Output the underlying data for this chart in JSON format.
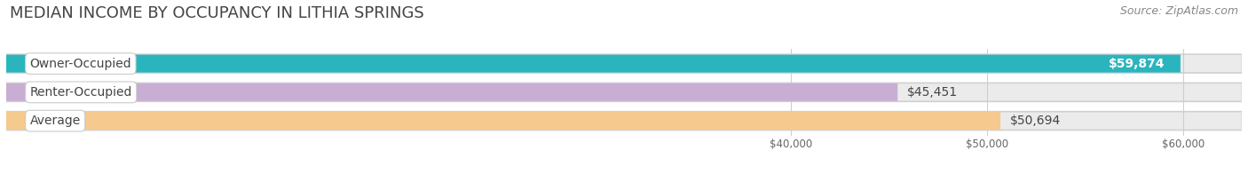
{
  "title": "MEDIAN INCOME BY OCCUPANCY IN LITHIA SPRINGS",
  "source": "Source: ZipAtlas.com",
  "categories": [
    "Owner-Occupied",
    "Renter-Occupied",
    "Average"
  ],
  "values": [
    59874,
    45451,
    50694
  ],
  "bar_colors": [
    "#2ab5be",
    "#c8aed3",
    "#f6c98e"
  ],
  "bar_bg_color": "#ebebeb",
  "bar_border_color": "#d5d5d5",
  "value_labels": [
    "$59,874",
    "$45,451",
    "$50,694"
  ],
  "xlim_min": 0,
  "xlim_max": 63000,
  "xticks": [
    40000,
    50000,
    60000
  ],
  "xtick_labels": [
    "$40,000",
    "$50,000",
    "$60,000"
  ],
  "title_fontsize": 13,
  "source_fontsize": 9,
  "label_fontsize": 10,
  "value_fontsize": 10,
  "bar_height": 0.62,
  "background_color": "#ffffff"
}
